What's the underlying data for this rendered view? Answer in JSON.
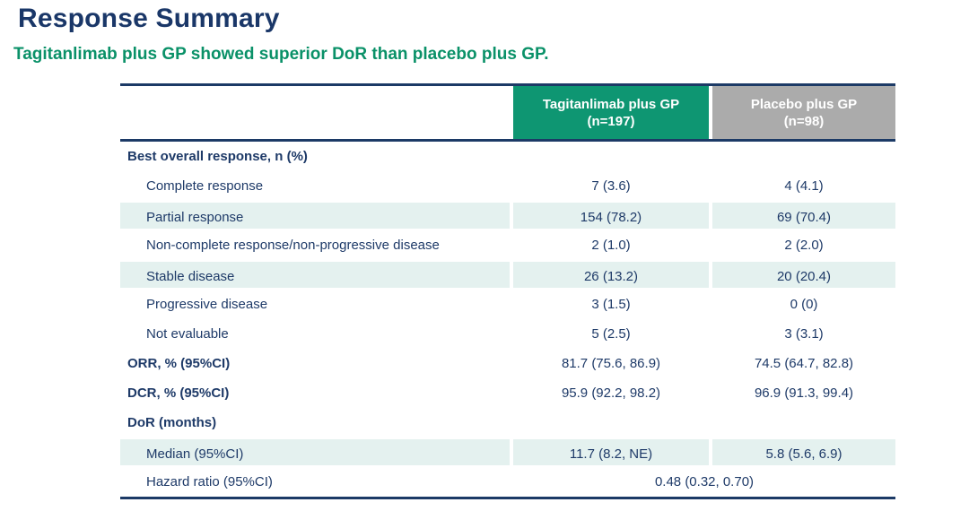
{
  "page": {
    "title": "Response Summary",
    "subtitle": "Tagitanlimab plus GP showed superior DoR than placebo plus GP."
  },
  "colors": {
    "title_text": "#1a3768",
    "subtitle_text": "#0a9168",
    "body_text": "#1e3a68",
    "rule": "#1c3a66",
    "header_tagitanlimab_bg": "#0e9672",
    "header_placebo_bg": "#ababab",
    "header_text": "#ffffff",
    "row_shade": "#e4f1ef"
  },
  "chart_data": {
    "type": "table",
    "title": "Response Summary",
    "columns": [
      {
        "line1": "Tagitanlimab plus GP",
        "line2": "(n=197)"
      },
      {
        "line1": "Placebo plus GP",
        "line2": "(n=98)"
      }
    ],
    "rows": [
      {
        "label": "Best overall response, n (%)",
        "type": "section",
        "shaded": false,
        "values": [
          "",
          ""
        ]
      },
      {
        "label": "Complete response",
        "type": "sub",
        "shaded": false,
        "values": [
          "7 (3.6)",
          "4 (4.1)"
        ]
      },
      {
        "label": "Partial response",
        "type": "sub",
        "shaded": true,
        "values": [
          "154 (78.2)",
          "69 (70.4)"
        ]
      },
      {
        "label": "Non-complete response/non-progressive disease",
        "type": "sub",
        "shaded": false,
        "values": [
          "2 (1.0)",
          "2 (2.0)"
        ]
      },
      {
        "label": "Stable disease",
        "type": "sub",
        "shaded": true,
        "values": [
          "26 (13.2)",
          "20 (20.4)"
        ]
      },
      {
        "label": "Progressive disease",
        "type": "sub",
        "shaded": false,
        "values": [
          "3 (1.5)",
          "0 (0)"
        ]
      },
      {
        "label": "Not evaluable",
        "type": "sub",
        "shaded": false,
        "values": [
          "5 (2.5)",
          "3 (3.1)"
        ]
      },
      {
        "label": "ORR, % (95%CI)",
        "type": "section",
        "shaded": false,
        "values": [
          "81.7 (75.6, 86.9)",
          "74.5 (64.7, 82.8)"
        ]
      },
      {
        "label": "DCR, % (95%CI)",
        "type": "section",
        "shaded": false,
        "values": [
          "95.9 (92.2, 98.2)",
          "96.9 (91.3, 99.4)"
        ]
      },
      {
        "label": "DoR (months)",
        "type": "section",
        "shaded": false,
        "values": [
          "",
          ""
        ]
      },
      {
        "label": "Median (95%CI)",
        "type": "sub",
        "shaded": true,
        "values": [
          "11.7 (8.2, NE)",
          "5.8 (5.6, 6.9)"
        ]
      },
      {
        "label": "Hazard ratio (95%CI)",
        "type": "sub",
        "shaded": false,
        "span_value": "0.48 (0.32, 0.70)"
      }
    ]
  }
}
